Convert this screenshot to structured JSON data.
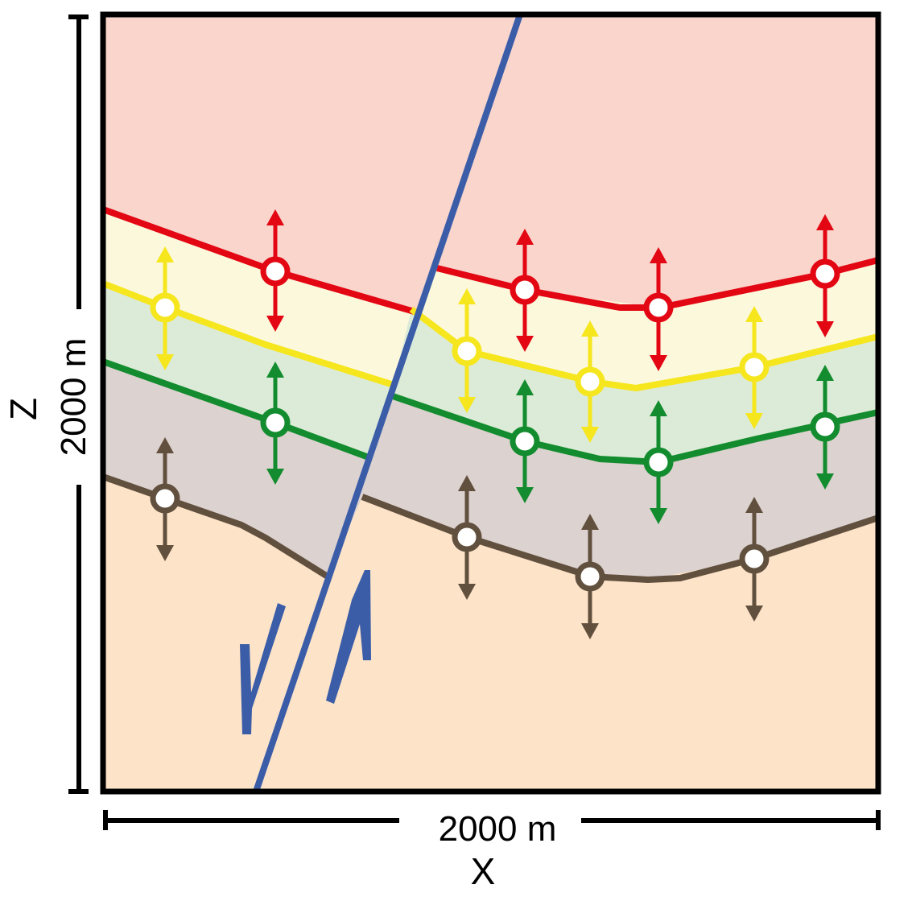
{
  "labels": {
    "x_axis": "X",
    "z_axis": "Z",
    "x_extent": "2000 m",
    "z_extent": "2000 m"
  },
  "colors": {
    "fault": "#3b5da8",
    "frame": "#000000",
    "arrow_white_fill": "#ffffff"
  },
  "layers": [
    {
      "name": "top-layer",
      "color": "#f9d5cc"
    },
    {
      "name": "layer-2",
      "color": "#fcf8dc"
    },
    {
      "name": "layer-3",
      "color": "#dcebd7"
    },
    {
      "name": "layer-4",
      "color": "#dcd2cf"
    },
    {
      "name": "bottom-layer",
      "color": "#fde3c8"
    }
  ],
  "horizons": [
    {
      "name": "red",
      "color": "#e30613"
    },
    {
      "name": "yellow",
      "color": "#f5e61e"
    },
    {
      "name": "green",
      "color": "#128c2e"
    },
    {
      "name": "brown",
      "color": "#62503f"
    }
  ]
}
